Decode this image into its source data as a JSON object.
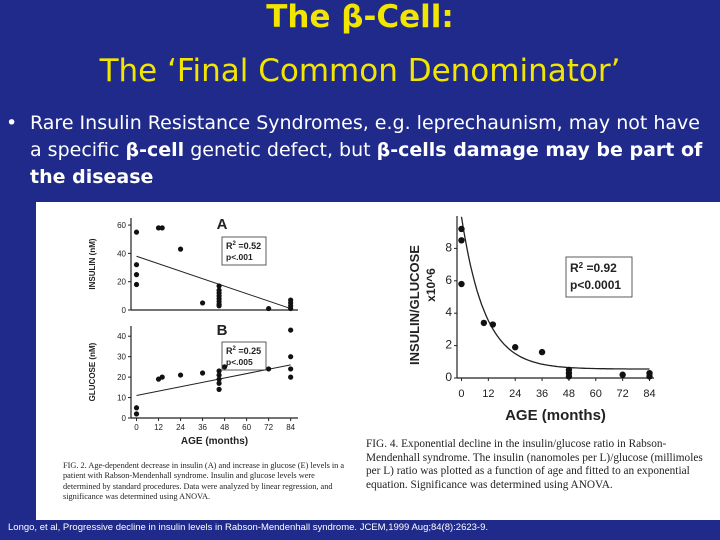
{
  "title_line1": "The β-Cell:",
  "title_line2": "The ‘Final Common Denominator’",
  "bullet": {
    "symbol": "•",
    "t1": "Rare Insulin Resistance Syndromes, e.g. leprechaunism, may not have a specific ",
    "b1": "β-cell",
    "t2": " genetic defect, but ",
    "b2": "β-cells damage may be part of the disease"
  },
  "caption_left": "FIG. 2. Age-dependent decrease in insulin (A) and increase in glucose (E) levels in a patient with Rabson-Mendenhall syndrome. Insulin and glucose levels were determined by standard procedures. Data were analyzed by linear regression, and significance was determined using ANOVA.",
  "caption_right": "FIG. 4. Exponential decline in the insulin/glucose ratio in Rabson-Mendenhall syndrome. The insulin (nanomoles per L)/glucose (millimoles per L) ratio was plotted as a function of age and fitted to an exponential equation. Significance was determined using ANOVA.",
  "citation": "Longo, et al, Progressive decline in insulin levels in Rabson-Mendenhall syndrome. JCEM,1999 Aug;84(8):2623-9.",
  "chart_data": [
    {
      "type": "scatter",
      "panel": "A",
      "ylabel": "INSULIN (nM)",
      "xlabel": "",
      "x_ticks": [
        0,
        12,
        24,
        36,
        48,
        60,
        72,
        84
      ],
      "y_ticks": [
        0,
        20,
        40,
        60
      ],
      "xlim": [
        -3,
        88
      ],
      "ylim": [
        0,
        65
      ],
      "annotation": [
        "R",
        "2",
        " =0.52",
        "p<.001"
      ],
      "points": [
        [
          0,
          25
        ],
        [
          0,
          18
        ],
        [
          0,
          32
        ],
        [
          0,
          55
        ],
        [
          12,
          58
        ],
        [
          14,
          58
        ],
        [
          24,
          43
        ],
        [
          36,
          5
        ],
        [
          45,
          17
        ],
        [
          45,
          14
        ],
        [
          45,
          12
        ],
        [
          45,
          10
        ],
        [
          45,
          8
        ],
        [
          45,
          6
        ],
        [
          45,
          4
        ],
        [
          45,
          3
        ],
        [
          72,
          1
        ],
        [
          84,
          7
        ],
        [
          84,
          5
        ],
        [
          84,
          3
        ],
        [
          84,
          1
        ]
      ],
      "fit": [
        [
          0,
          38
        ],
        [
          84,
          1
        ]
      ]
    },
    {
      "type": "scatter",
      "panel": "B",
      "ylabel": "GLUCOSE (nM)",
      "xlabel": "AGE (months)",
      "x_ticks": [
        0,
        12,
        24,
        36,
        48,
        60,
        72,
        84
      ],
      "y_ticks": [
        0,
        10,
        20,
        30,
        40
      ],
      "xlim": [
        -3,
        88
      ],
      "ylim": [
        0,
        45
      ],
      "annotation": [
        "R",
        "2",
        " =0.25",
        "p<.005"
      ],
      "points": [
        [
          0,
          5
        ],
        [
          0,
          2
        ],
        [
          12,
          19
        ],
        [
          14,
          20
        ],
        [
          24,
          21
        ],
        [
          36,
          22
        ],
        [
          45,
          23
        ],
        [
          45,
          21
        ],
        [
          45,
          19
        ],
        [
          45,
          17
        ],
        [
          45,
          14
        ],
        [
          48,
          25
        ],
        [
          72,
          24
        ],
        [
          84,
          43
        ],
        [
          84,
          30
        ],
        [
          84,
          24
        ],
        [
          84,
          20
        ]
      ],
      "fit": [
        [
          0,
          11
        ],
        [
          84,
          26
        ]
      ]
    },
    {
      "type": "scatter",
      "panel": "right",
      "ylabel": "INSULIN/GLUCOSE",
      "ylabel2": "x10^6",
      "xlabel": "AGE (months)",
      "x_ticks": [
        0,
        12,
        24,
        36,
        48,
        60,
        72,
        84
      ],
      "y_ticks": [
        0,
        2,
        4,
        6,
        8
      ],
      "xlim": [
        -2,
        86
      ],
      "ylim": [
        0,
        10
      ],
      "annotation": [
        "R",
        "2",
        " =0.92",
        "p<0.0001"
      ],
      "points": [
        [
          0,
          9.2
        ],
        [
          0,
          8.5
        ],
        [
          0,
          5.8
        ],
        [
          10,
          3.4
        ],
        [
          14,
          3.3
        ],
        [
          24,
          1.9
        ],
        [
          36,
          1.6
        ],
        [
          48,
          0.5
        ],
        [
          48,
          0.3
        ],
        [
          48,
          0.1
        ],
        [
          72,
          0.2
        ],
        [
          84,
          0.3
        ],
        [
          84,
          0.1
        ]
      ],
      "fit_curve": "exponential"
    }
  ]
}
